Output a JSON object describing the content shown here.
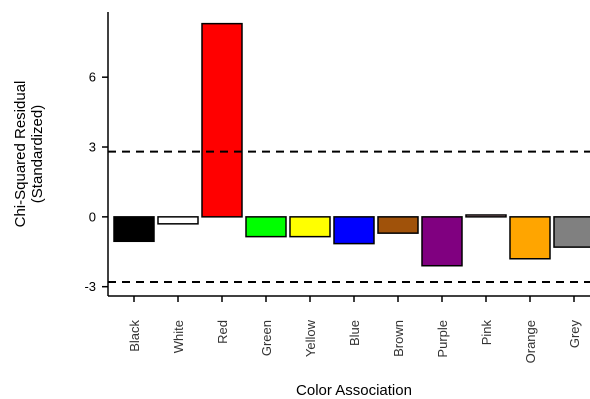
{
  "chart_data": {
    "type": "bar",
    "xlabel": "Color Association",
    "ylabel_line1": "Chi-Squared Residual",
    "ylabel_line2": "(Standardized)",
    "categories": [
      "Black",
      "White",
      "Red",
      "Green",
      "Yellow",
      "Blue",
      "Brown",
      "Purple",
      "Pink",
      "Orange",
      "Grey"
    ],
    "values": [
      -1.05,
      -0.3,
      8.3,
      -0.85,
      -0.85,
      -1.15,
      -0.7,
      -2.1,
      0.08,
      -1.8,
      -1.3
    ],
    "colors": [
      "#000000",
      "#ffffff",
      "#ff0000",
      "#00ff00",
      "#ffff00",
      "#0000ff",
      "#a0520a",
      "#800080",
      "#ffc0cb",
      "#ffa500",
      "#808080"
    ],
    "ylim": [
      -3.4,
      8.8
    ],
    "yticks": [
      -3,
      0,
      3,
      6
    ],
    "ytick_labels": [
      "-3",
      "0",
      "3",
      "6"
    ],
    "reference_lines": [
      2.8,
      -2.8
    ],
    "grid": false,
    "legend": "none"
  }
}
